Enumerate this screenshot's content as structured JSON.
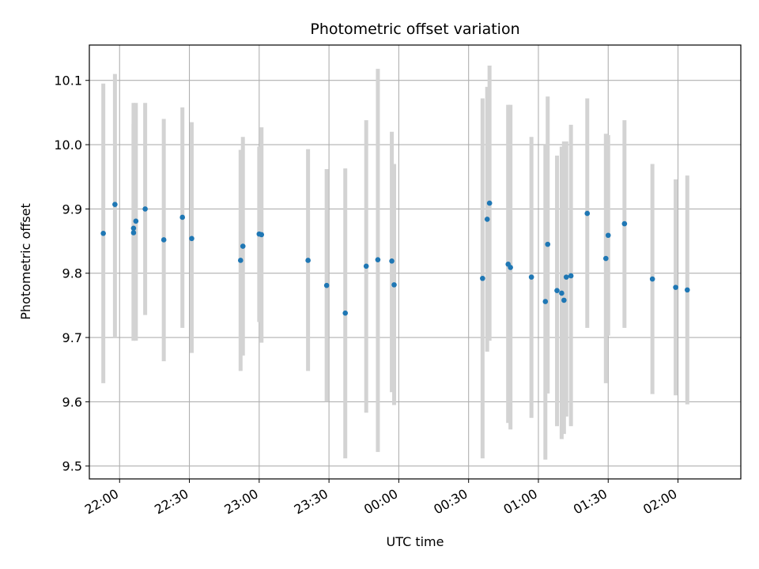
{
  "chart_data": {
    "type": "scatter",
    "title": "Photometric offset variation",
    "xlabel": "UTC time",
    "ylabel": "Photometric offset",
    "xlim": [
      "21:47",
      "02:27"
    ],
    "ylim": [
      9.48,
      10.155
    ],
    "grid": true,
    "x_ticks": [
      "22:00",
      "22:30",
      "23:00",
      "23:30",
      "00:00",
      "00:30",
      "01:00",
      "01:30",
      "02:00"
    ],
    "y_ticks": [
      "9.5",
      "9.6",
      "9.7",
      "9.8",
      "9.9",
      "10.0",
      "10.1"
    ],
    "marker_color": "#1f77b4",
    "errorbar_color": "#d3d3d3",
    "points": [
      {
        "t": "21:53",
        "y": 9.862,
        "lo": 9.629,
        "hi": 10.095
      },
      {
        "t": "21:58",
        "y": 9.907,
        "lo": 9.7,
        "hi": 10.11
      },
      {
        "t": "22:06",
        "y": 9.863,
        "lo": 9.695,
        "hi": 10.032
      },
      {
        "t": "22:06",
        "y": 9.87,
        "lo": 9.695,
        "hi": 10.065
      },
      {
        "t": "22:07",
        "y": 9.881,
        "lo": 9.695,
        "hi": 10.065
      },
      {
        "t": "22:11",
        "y": 9.9,
        "lo": 9.735,
        "hi": 10.065
      },
      {
        "t": "22:19",
        "y": 9.852,
        "lo": 9.663,
        "hi": 10.04
      },
      {
        "t": "22:27",
        "y": 9.887,
        "lo": 9.715,
        "hi": 10.058
      },
      {
        "t": "22:31",
        "y": 9.854,
        "lo": 9.676,
        "hi": 10.035
      },
      {
        "t": "22:52",
        "y": 9.82,
        "lo": 9.648,
        "hi": 9.992
      },
      {
        "t": "22:53",
        "y": 9.842,
        "lo": 9.672,
        "hi": 10.012
      },
      {
        "t": "23:00",
        "y": 9.861,
        "lo": 9.724,
        "hi": 9.997
      },
      {
        "t": "23:01",
        "y": 9.86,
        "lo": 9.692,
        "hi": 10.027
      },
      {
        "t": "23:21",
        "y": 9.82,
        "lo": 9.648,
        "hi": 9.993
      },
      {
        "t": "23:29",
        "y": 9.781,
        "lo": 9.6,
        "hi": 9.962
      },
      {
        "t": "23:37",
        "y": 9.738,
        "lo": 9.512,
        "hi": 9.963
      },
      {
        "t": "23:46",
        "y": 9.811,
        "lo": 9.583,
        "hi": 10.038
      },
      {
        "t": "23:51",
        "y": 9.821,
        "lo": 9.522,
        "hi": 10.118
      },
      {
        "t": "23:57",
        "y": 9.819,
        "lo": 9.615,
        "hi": 10.02
      },
      {
        "t": "23:58",
        "y": 9.782,
        "lo": 9.595,
        "hi": 9.97
      },
      {
        "t": "00:36",
        "y": 9.792,
        "lo": 9.512,
        "hi": 10.072
      },
      {
        "t": "00:38",
        "y": 9.884,
        "lo": 9.678,
        "hi": 10.09
      },
      {
        "t": "00:39",
        "y": 9.909,
        "lo": 9.695,
        "hi": 10.123
      },
      {
        "t": "00:47",
        "y": 9.814,
        "lo": 9.567,
        "hi": 10.062
      },
      {
        "t": "00:48",
        "y": 9.809,
        "lo": 9.557,
        "hi": 10.062
      },
      {
        "t": "00:57",
        "y": 9.794,
        "lo": 9.575,
        "hi": 10.012
      },
      {
        "t": "01:03",
        "y": 9.756,
        "lo": 9.51,
        "hi": 10.0
      },
      {
        "t": "01:04",
        "y": 9.845,
        "lo": 9.613,
        "hi": 10.075
      },
      {
        "t": "01:08",
        "y": 9.773,
        "lo": 9.562,
        "hi": 9.983
      },
      {
        "t": "01:10",
        "y": 9.769,
        "lo": 9.542,
        "hi": 9.997
      },
      {
        "t": "01:11",
        "y": 9.758,
        "lo": 9.55,
        "hi": 10.005
      },
      {
        "t": "01:12",
        "y": 9.794,
        "lo": 9.577,
        "hi": 10.005
      },
      {
        "t": "01:14",
        "y": 9.796,
        "lo": 9.562,
        "hi": 10.031
      },
      {
        "t": "01:21",
        "y": 9.893,
        "lo": 9.715,
        "hi": 10.072
      },
      {
        "t": "01:29",
        "y": 9.823,
        "lo": 9.629,
        "hi": 10.017
      },
      {
        "t": "01:30",
        "y": 9.859,
        "lo": 9.703,
        "hi": 10.015
      },
      {
        "t": "01:37",
        "y": 9.877,
        "lo": 9.715,
        "hi": 10.038
      },
      {
        "t": "01:49",
        "y": 9.791,
        "lo": 9.612,
        "hi": 9.97
      },
      {
        "t": "01:59",
        "y": 9.778,
        "lo": 9.61,
        "hi": 9.946
      },
      {
        "t": "02:04",
        "y": 9.774,
        "lo": 9.596,
        "hi": 9.952
      }
    ]
  }
}
